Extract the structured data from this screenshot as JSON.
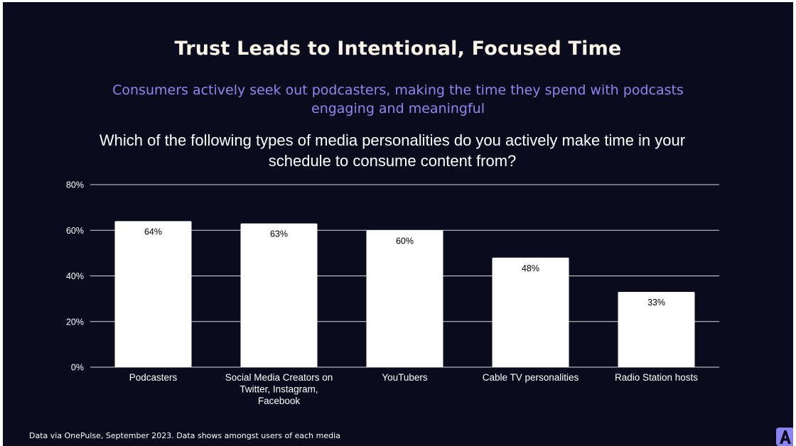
{
  "slide": {
    "title": "Trust Leads to Intentional, Focused Time",
    "subtitle": "Consumers actively seek out podcasters, making the time they spend with podcasts engaging and meaningful",
    "question": "Which of the following types of media personalities do you actively make time in your schedule to consume content from?",
    "source": "Data via OnePulse, September 2023.  Data shows amongst users of each media",
    "logo_icon": "brand-a-logo-icon",
    "colors": {
      "background": "#0b0b1e",
      "title": "#fbf6e9",
      "subtitle": "#8f86ee",
      "bar": "#ffffff",
      "gridline": "#d9d9d9",
      "logo": "#8a84f0"
    }
  },
  "chart_data": {
    "type": "bar",
    "title": "Which of the following types of media personalities do you actively make time in your schedule to consume content from?",
    "xlabel": "",
    "ylabel": "",
    "ylim": [
      0,
      80
    ],
    "yticks": [
      0,
      20,
      40,
      60,
      80
    ],
    "ytick_labels": [
      "0%",
      "20%",
      "40%",
      "60%",
      "80%"
    ],
    "grid": true,
    "legend": "none",
    "categories": [
      [
        "Podcasters"
      ],
      [
        "Social Media Creators on",
        "Twitter, Instagram,",
        "Facebook"
      ],
      [
        "YouTubers"
      ],
      [
        "Cable TV personalities"
      ],
      [
        "Radio Station hosts"
      ]
    ],
    "values": [
      64,
      63,
      60,
      48,
      33
    ],
    "data_labels": [
      "64%",
      "63%",
      "60%",
      "48%",
      "33%"
    ]
  }
}
